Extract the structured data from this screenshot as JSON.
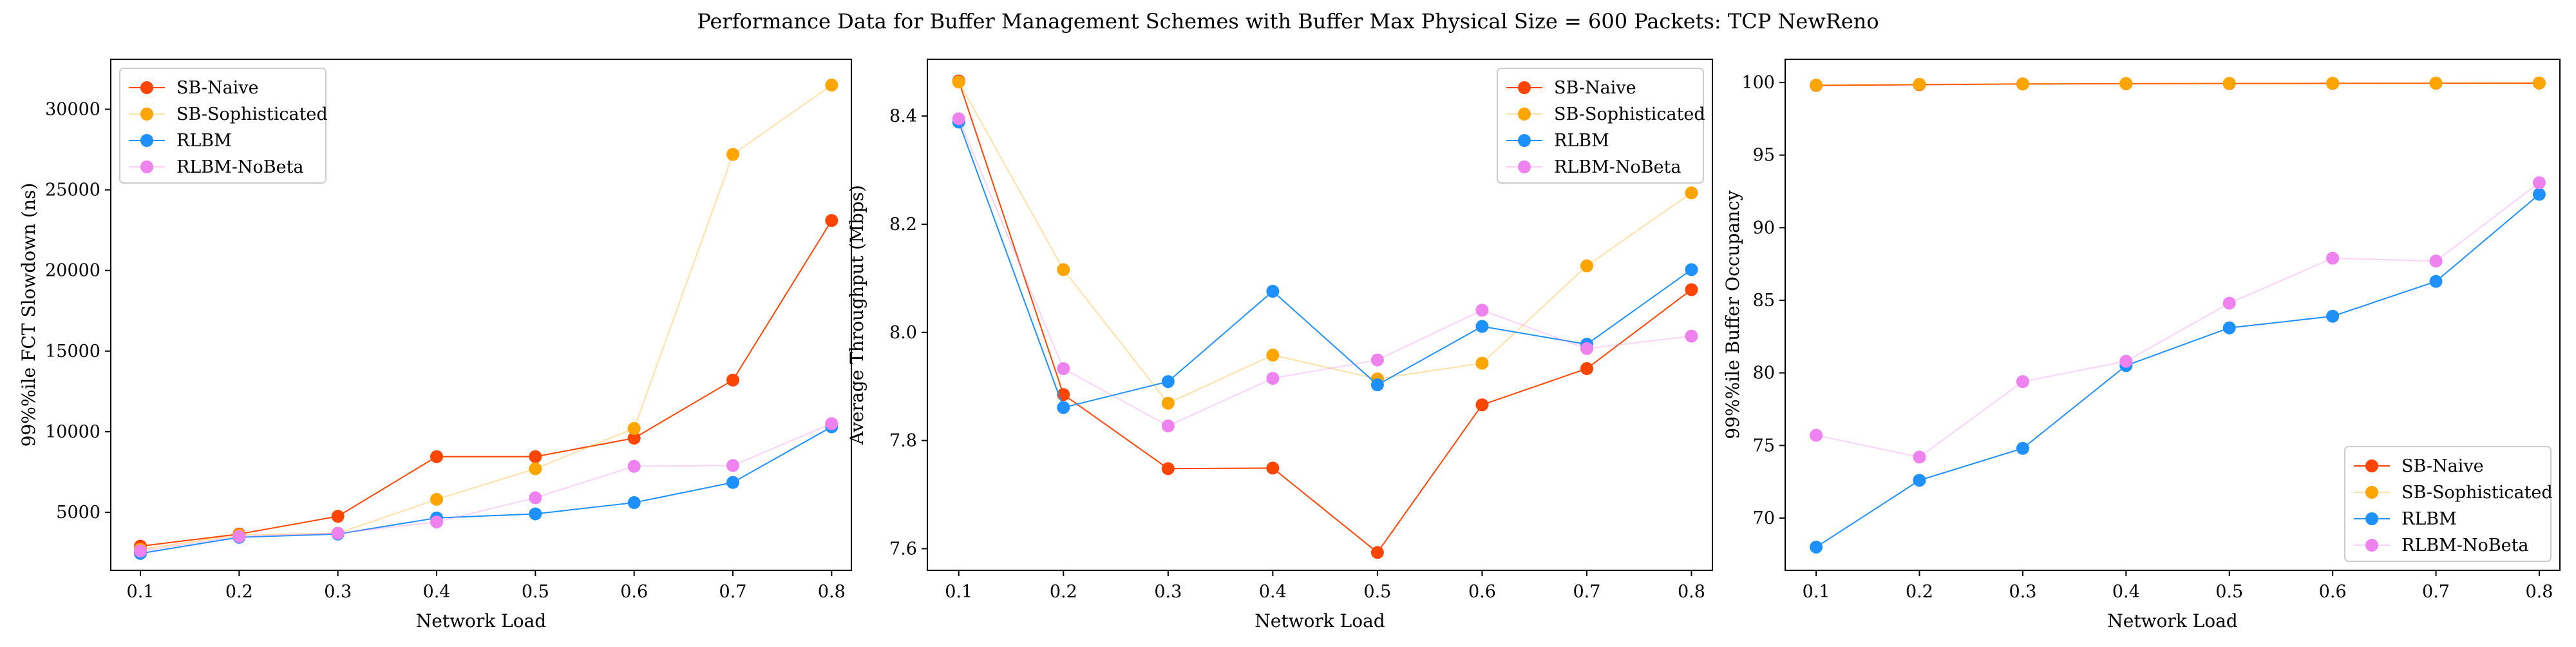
{
  "figure": {
    "title": "Performance Data for Buffer Management Schemes with Buffer Max Physical Size = 600 Packets: TCP NewReno"
  },
  "colors": {
    "SB-Naive": "#ff4500",
    "SB-Sophisticated": "#ffa500",
    "RLBM": "#1e90ff",
    "RLBM-NoBeta": "#ee82ee"
  },
  "chart_data": [
    {
      "type": "line",
      "xlabel": "Network Load",
      "ylabel": "99%%ile FCT Slowdown (ns)",
      "x": [
        0.1,
        0.2,
        0.3,
        0.4,
        0.5,
        0.6,
        0.7,
        0.8
      ],
      "xticks": [
        0.1,
        0.2,
        0.3,
        0.4,
        0.5,
        0.6,
        0.7,
        0.8
      ],
      "xlim": [
        0.07,
        0.82
      ],
      "ylim": [
        1400,
        33100
      ],
      "yticks": [
        5000,
        10000,
        15000,
        20000,
        25000,
        30000
      ],
      "legend": "top-left",
      "series": [
        {
          "name": "SB-Naive",
          "values": [
            2900,
            3650,
            4750,
            8450,
            8450,
            9600,
            13200,
            23100
          ]
        },
        {
          "name": "SB-Sophisticated",
          "values": [
            2700,
            3600,
            3700,
            5800,
            7700,
            10200,
            27200,
            31500
          ]
        },
        {
          "name": "RLBM",
          "values": [
            2450,
            3450,
            3650,
            4650,
            4900,
            5600,
            6850,
            10300
          ]
        },
        {
          "name": "RLBM-NoBeta",
          "values": [
            2600,
            3500,
            3700,
            4400,
            5900,
            7850,
            7900,
            10500
          ]
        }
      ]
    },
    {
      "type": "line",
      "xlabel": "Network Load",
      "ylabel": "Average Throughput (Mbps)",
      "x": [
        0.1,
        0.2,
        0.3,
        0.4,
        0.5,
        0.6,
        0.7,
        0.8
      ],
      "xticks": [
        0.1,
        0.2,
        0.3,
        0.4,
        0.5,
        0.6,
        0.7,
        0.8
      ],
      "xlim": [
        0.07,
        0.82
      ],
      "ylim": [
        7.56,
        8.505
      ],
      "yticks": [
        7.6,
        7.8,
        8.0,
        8.2,
        8.4
      ],
      "legend": "top-right",
      "series": [
        {
          "name": "SB-Naive",
          "values": [
            8.465,
            7.885,
            7.748,
            7.749,
            7.593,
            7.866,
            7.933,
            8.079
          ]
        },
        {
          "name": "SB-Sophisticated",
          "values": [
            8.463,
            8.116,
            7.869,
            7.958,
            7.914,
            7.943,
            8.123,
            8.258
          ]
        },
        {
          "name": "RLBM",
          "values": [
            8.389,
            7.861,
            7.909,
            8.076,
            7.903,
            8.011,
            7.978,
            8.116
          ]
        },
        {
          "name": "RLBM-NoBeta",
          "values": [
            8.395,
            7.933,
            7.827,
            7.915,
            7.949,
            8.041,
            7.97,
            7.993
          ]
        }
      ]
    },
    {
      "type": "line",
      "xlabel": "Network Load",
      "ylabel": "99%%ile Buffer Occupancy",
      "x": [
        0.1,
        0.2,
        0.3,
        0.4,
        0.5,
        0.6,
        0.7,
        0.8
      ],
      "xticks": [
        0.1,
        0.2,
        0.3,
        0.4,
        0.5,
        0.6,
        0.7,
        0.8
      ],
      "xlim": [
        0.07,
        0.82
      ],
      "ylim": [
        66.4,
        101.6
      ],
      "yticks": [
        70,
        75,
        80,
        85,
        90,
        95,
        100
      ],
      "legend": "bottom-right",
      "series": [
        {
          "name": "SB-Naive",
          "values": [
            99.8,
            99.85,
            99.9,
            99.92,
            99.93,
            99.94,
            99.95,
            99.96
          ]
        },
        {
          "name": "SB-Sophisticated",
          "values": [
            99.82,
            99.88,
            99.9,
            99.93,
            99.94,
            99.95,
            99.96,
            99.97
          ]
        },
        {
          "name": "RLBM",
          "values": [
            68.0,
            72.6,
            74.8,
            80.5,
            83.1,
            83.9,
            86.3,
            92.3
          ]
        },
        {
          "name": "RLBM-NoBeta",
          "values": [
            75.7,
            74.2,
            79.4,
            80.8,
            84.8,
            87.9,
            87.7,
            93.1
          ]
        }
      ]
    }
  ]
}
